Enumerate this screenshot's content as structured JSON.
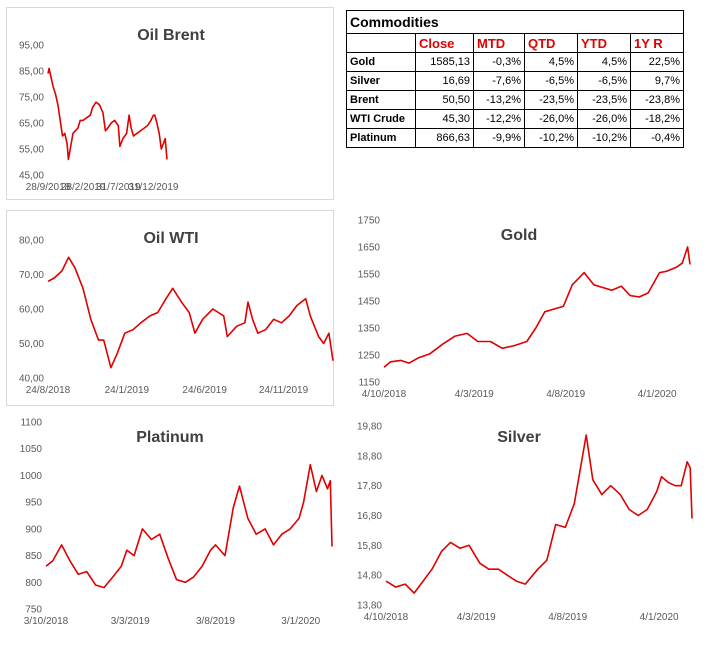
{
  "table": {
    "title": "Commodities",
    "headers": [
      "Close",
      "MTD",
      "QTD",
      "YTD",
      "1Y R"
    ],
    "rows": [
      {
        "name": "Gold",
        "close": "1585,13",
        "mtd": "-0,3%",
        "qtd": "4,5%",
        "ytd": "4,5%",
        "y1r": "22,5%"
      },
      {
        "name": "Silver",
        "close": "16,69",
        "mtd": "-7,6%",
        "qtd": "-6,5%",
        "ytd": "-6,5%",
        "y1r": "9,7%"
      },
      {
        "name": "Brent",
        "close": "50,50",
        "mtd": "-13,2%",
        "qtd": "-23,5%",
        "ytd": "-23,5%",
        "y1r": "-23,8%"
      },
      {
        "name": "WTI Crude",
        "close": "45,30",
        "mtd": "-12,2%",
        "qtd": "-26,0%",
        "ytd": "-26,0%",
        "y1r": "-18,2%"
      },
      {
        "name": "Platinum",
        "close": "866,63",
        "mtd": "-9,9%",
        "qtd": "-10,2%",
        "ytd": "-10,2%",
        "y1r": "-0,4%"
      }
    ]
  },
  "line_color": "#e00000",
  "chart_data": [
    {
      "id": "brent",
      "type": "line",
      "title": "Oil Brent",
      "ylim": [
        45,
        95
      ],
      "yticks": [
        "95,00",
        "85,00",
        "75,00",
        "65,00",
        "55,00",
        "45,00"
      ],
      "xlim": [
        "2018-09-28",
        "2020-02-28"
      ],
      "xticks": [
        {
          "date": "2018-09-28",
          "label": "28/9/2018"
        },
        {
          "date": "2019-02-28",
          "label": "28/2/2019"
        },
        {
          "date": "2019-07-31",
          "label": "31/7/2019"
        },
        {
          "date": "2019-12-31",
          "label": "31/12/2019"
        }
      ],
      "x": [
        "2018-09-28",
        "2018-10-03",
        "2018-10-10",
        "2018-10-20",
        "2018-10-31",
        "2018-11-10",
        "2018-11-20",
        "2018-11-30",
        "2018-12-10",
        "2018-12-20",
        "2018-12-26",
        "2019-01-05",
        "2019-01-15",
        "2019-01-25",
        "2019-02-05",
        "2019-02-15",
        "2019-02-28",
        "2019-03-15",
        "2019-03-31",
        "2019-04-10",
        "2019-04-25",
        "2019-05-10",
        "2019-05-25",
        "2019-06-05",
        "2019-06-15",
        "2019-06-30",
        "2019-07-15",
        "2019-07-31",
        "2019-08-07",
        "2019-08-20",
        "2019-09-05",
        "2019-09-16",
        "2019-09-25",
        "2019-10-05",
        "2019-10-20",
        "2019-11-05",
        "2019-11-20",
        "2019-12-05",
        "2019-12-20",
        "2019-12-31",
        "2020-01-06",
        "2020-01-15",
        "2020-01-25",
        "2020-02-03",
        "2020-02-12",
        "2020-02-20",
        "2020-02-28"
      ],
      "y": [
        84,
        86,
        83,
        79,
        76,
        72,
        66,
        60,
        61,
        57,
        51,
        56,
        61,
        62,
        63,
        66,
        66,
        67,
        68,
        71,
        73,
        72,
        69,
        62,
        63,
        65,
        66,
        64,
        56,
        59,
        61,
        68,
        63,
        60,
        61,
        62,
        63,
        64,
        66,
        68,
        68,
        65,
        61,
        55,
        57,
        59,
        51
      ]
    },
    {
      "id": "wti",
      "type": "line",
      "title": "Oil WTI",
      "ylim": [
        40,
        80
      ],
      "yticks": [
        "80,00",
        "70,00",
        "60,00",
        "50,00",
        "40,00"
      ],
      "xlim": [
        "2018-08-24",
        "2020-02-28"
      ],
      "xticks": [
        {
          "date": "2018-08-24",
          "label": "24/8/2018"
        },
        {
          "date": "2019-01-24",
          "label": "24/1/2019"
        },
        {
          "date": "2019-06-24",
          "label": "24/6/2019"
        },
        {
          "date": "2019-11-24",
          "label": "24/11/2019"
        }
      ],
      "x": [
        "2018-08-24",
        "2018-09-05",
        "2018-09-20",
        "2018-10-03",
        "2018-10-15",
        "2018-10-31",
        "2018-11-15",
        "2018-11-30",
        "2018-12-10",
        "2018-12-24",
        "2019-01-05",
        "2019-01-20",
        "2019-02-05",
        "2019-02-20",
        "2019-03-10",
        "2019-03-25",
        "2019-04-10",
        "2019-04-23",
        "2019-05-10",
        "2019-05-25",
        "2019-06-05",
        "2019-06-20",
        "2019-07-10",
        "2019-07-31",
        "2019-08-07",
        "2019-08-25",
        "2019-09-10",
        "2019-09-16",
        "2019-09-25",
        "2019-10-05",
        "2019-10-20",
        "2019-11-05",
        "2019-11-20",
        "2019-12-05",
        "2019-12-20",
        "2020-01-06",
        "2020-01-15",
        "2020-01-31",
        "2020-02-10",
        "2020-02-20",
        "2020-02-28"
      ],
      "y": [
        68,
        69,
        71,
        75,
        72,
        66,
        57,
        51,
        51,
        43,
        47,
        53,
        54,
        56,
        58,
        59,
        63,
        66,
        62,
        59,
        53,
        57,
        60,
        58,
        52,
        55,
        56,
        62,
        57,
        53,
        54,
        57,
        56,
        58,
        61,
        63,
        58,
        52,
        50,
        53,
        45
      ]
    },
    {
      "id": "gold",
      "type": "line",
      "title": "Gold",
      "ylim": [
        1150,
        1750
      ],
      "yticks": [
        "1750",
        "1650",
        "1550",
        "1450",
        "1350",
        "1250",
        "1150"
      ],
      "xlim": [
        "2018-10-04",
        "2020-02-28"
      ],
      "xticks": [
        {
          "date": "2018-10-04",
          "label": "4/10/2018"
        },
        {
          "date": "2019-03-04",
          "label": "4/3/2019"
        },
        {
          "date": "2019-08-04",
          "label": "4/8/2019"
        },
        {
          "date": "2020-01-04",
          "label": "4/1/2020"
        }
      ],
      "x": [
        "2018-10-04",
        "2018-10-15",
        "2018-11-01",
        "2018-11-15",
        "2018-12-01",
        "2018-12-20",
        "2019-01-10",
        "2019-01-31",
        "2019-02-20",
        "2019-03-10",
        "2019-03-31",
        "2019-04-20",
        "2019-05-10",
        "2019-05-31",
        "2019-06-15",
        "2019-06-30",
        "2019-07-15",
        "2019-07-31",
        "2019-08-15",
        "2019-09-04",
        "2019-09-20",
        "2019-10-05",
        "2019-10-20",
        "2019-11-05",
        "2019-11-20",
        "2019-12-05",
        "2019-12-20",
        "2020-01-08",
        "2020-01-20",
        "2020-02-05",
        "2020-02-15",
        "2020-02-24",
        "2020-02-28"
      ],
      "y": [
        1205,
        1225,
        1230,
        1220,
        1240,
        1255,
        1290,
        1320,
        1330,
        1300,
        1300,
        1275,
        1285,
        1300,
        1350,
        1410,
        1420,
        1430,
        1510,
        1555,
        1510,
        1500,
        1490,
        1505,
        1470,
        1465,
        1480,
        1555,
        1560,
        1575,
        1590,
        1650,
        1585
      ]
    },
    {
      "id": "platinum",
      "type": "line",
      "title": "Platinum",
      "ylim": [
        750,
        1100
      ],
      "yticks": [
        "1100",
        "1050",
        "1000",
        "950",
        "900",
        "850",
        "800",
        "750"
      ],
      "xlim": [
        "2018-10-03",
        "2020-02-28"
      ],
      "xticks": [
        {
          "date": "2018-10-03",
          "label": "3/10/2018"
        },
        {
          "date": "2019-03-03",
          "label": "3/3/2019"
        },
        {
          "date": "2019-08-03",
          "label": "3/8/2019"
        },
        {
          "date": "2020-01-03",
          "label": "3/1/2020"
        }
      ],
      "x": [
        "2018-10-03",
        "2018-10-15",
        "2018-10-31",
        "2018-11-15",
        "2018-11-30",
        "2018-12-15",
        "2018-12-31",
        "2019-01-15",
        "2019-01-31",
        "2019-02-15",
        "2019-02-25",
        "2019-03-10",
        "2019-03-25",
        "2019-04-10",
        "2019-04-25",
        "2019-05-10",
        "2019-05-25",
        "2019-06-10",
        "2019-06-25",
        "2019-07-10",
        "2019-07-25",
        "2019-08-03",
        "2019-08-20",
        "2019-09-04",
        "2019-09-15",
        "2019-09-30",
        "2019-10-15",
        "2019-10-31",
        "2019-11-15",
        "2019-11-30",
        "2019-12-15",
        "2019-12-31",
        "2020-01-08",
        "2020-01-20",
        "2020-01-31",
        "2020-02-10",
        "2020-02-20",
        "2020-02-25",
        "2020-02-28"
      ],
      "y": [
        830,
        840,
        870,
        840,
        815,
        820,
        795,
        790,
        810,
        830,
        860,
        850,
        900,
        880,
        890,
        845,
        805,
        800,
        810,
        830,
        860,
        870,
        850,
        940,
        980,
        920,
        890,
        900,
        870,
        890,
        900,
        920,
        950,
        1020,
        970,
        1000,
        975,
        990,
        867
      ]
    },
    {
      "id": "silver",
      "type": "line",
      "title": "Silver",
      "ylim": [
        13.8,
        19.8
      ],
      "yticks": [
        "19,80",
        "18,80",
        "17,80",
        "16,80",
        "15,80",
        "14,80",
        "13,80"
      ],
      "xlim": [
        "2018-10-04",
        "2020-02-28"
      ],
      "xticks": [
        {
          "date": "2018-10-04",
          "label": "4/10/2018"
        },
        {
          "date": "2019-03-04",
          "label": "4/3/2019"
        },
        {
          "date": "2019-08-04",
          "label": "4/8/2019"
        },
        {
          "date": "2020-01-04",
          "label": "4/1/2020"
        }
      ],
      "x": [
        "2018-10-04",
        "2018-10-20",
        "2018-11-05",
        "2018-11-20",
        "2018-12-05",
        "2018-12-20",
        "2019-01-05",
        "2019-01-20",
        "2019-02-05",
        "2019-02-20",
        "2019-03-10",
        "2019-03-25",
        "2019-04-10",
        "2019-04-25",
        "2019-05-10",
        "2019-05-25",
        "2019-06-15",
        "2019-06-30",
        "2019-07-15",
        "2019-07-31",
        "2019-08-15",
        "2019-09-04",
        "2019-09-15",
        "2019-09-30",
        "2019-10-15",
        "2019-10-31",
        "2019-11-15",
        "2019-11-30",
        "2019-12-15",
        "2019-12-31",
        "2020-01-08",
        "2020-01-20",
        "2020-01-31",
        "2020-02-10",
        "2020-02-20",
        "2020-02-25",
        "2020-02-28"
      ],
      "y": [
        14.6,
        14.4,
        14.5,
        14.2,
        14.6,
        15.0,
        15.6,
        15.9,
        15.7,
        15.8,
        15.2,
        15.0,
        15.0,
        14.8,
        14.6,
        14.5,
        15.0,
        15.3,
        16.5,
        16.4,
        17.2,
        19.5,
        18.0,
        17.5,
        17.8,
        17.5,
        17.0,
        16.8,
        17.0,
        17.6,
        18.1,
        17.9,
        17.8,
        17.8,
        18.6,
        18.4,
        16.7
      ]
    }
  ]
}
